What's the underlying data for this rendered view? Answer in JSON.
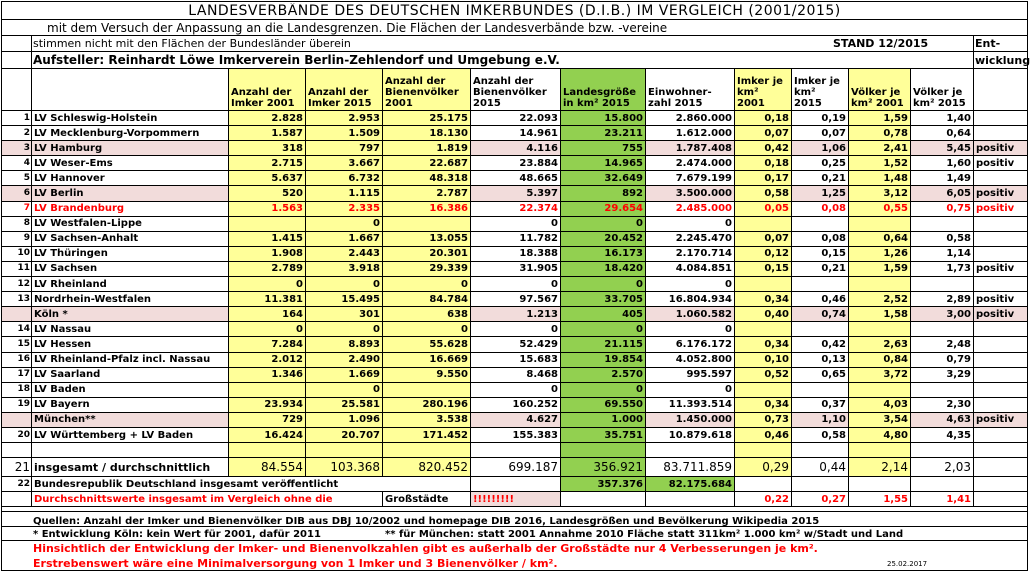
{
  "header": {
    "title": "LANDESVERBÄNDE DES DEUTSCHEN IMKERBUNDES (D.I.B.) IM VERGLEICH (2001/2015)",
    "subtitle": "mit dem Versuch der Anpassung an die Landesgrenzen. Die Flächen der Landesverbände bzw. -vereine",
    "subtitle2": "stimmen nicht mit den Flächen der Bundesländer überein",
    "stand": "STAND 12/2015",
    "ent": "Ent-",
    "author": "Aufsteller: Reinhardt Löwe Imkerverein Berlin-Zehlendorf und Umgebung e.V.",
    "wicklung": "wicklung"
  },
  "columns": [
    "Anzahl der Imker 2001",
    "Anzahl der Imker 2015",
    "Anzahl der Bienenvölker 2001",
    "Anzahl der Bienenvölker 2015",
    "Landesgröße in km² 2015",
    "Einwohner-zahl 2015",
    "Imker je km² 2001",
    "Imker je km² 2015",
    "Völker je km² 2001",
    "Völker je km² 2015"
  ],
  "rows": [
    {
      "nr": "1",
      "name": "LV Schleswig-Holstein",
      "v": [
        "2.828",
        "2.953",
        "25.175",
        "22.093",
        "15.800",
        "2.860.000",
        "0,18",
        "0,19",
        "1,59",
        "1,40"
      ],
      "ex": "",
      "style": ""
    },
    {
      "nr": "2",
      "name": "LV Mecklenburg-Vorpommern",
      "v": [
        "1.587",
        "1.509",
        "18.130",
        "14.961",
        "23.211",
        "1.612.000",
        "0,07",
        "0,07",
        "0,78",
        "0,64"
      ],
      "ex": "",
      "style": ""
    },
    {
      "nr": "3",
      "name": "LV Hamburg",
      "v": [
        "318",
        "797",
        "1.819",
        "4.116",
        "755",
        "1.787.408",
        "0,42",
        "1,06",
        "2,41",
        "5,45"
      ],
      "ex": "positiv",
      "style": "p"
    },
    {
      "nr": "4",
      "name": "LV Weser-Ems",
      "v": [
        "2.715",
        "3.667",
        "22.687",
        "23.884",
        "14.965",
        "2.474.000",
        "0,18",
        "0,25",
        "1,52",
        "1,60"
      ],
      "ex": "positiv",
      "style": ""
    },
    {
      "nr": "5",
      "name": "LV Hannover",
      "v": [
        "5.637",
        "6.732",
        "48.318",
        "48.665",
        "32.649",
        "7.679.199",
        "0,17",
        "0,21",
        "1,48",
        "1,49"
      ],
      "ex": "",
      "style": ""
    },
    {
      "nr": "6",
      "name": "LV Berlin",
      "v": [
        "520",
        "1.115",
        "2.787",
        "5.397",
        "892",
        "3.500.000",
        "0,58",
        "1,25",
        "3,12",
        "6,05"
      ],
      "ex": "positiv",
      "style": "p"
    },
    {
      "nr": "7",
      "name": "LV Brandenburg",
      "v": [
        "1.563",
        "2.335",
        "16.386",
        "22.374",
        "29.654",
        "2.485.000",
        "0,05",
        "0,08",
        "0,55",
        "0,75"
      ],
      "ex": "positiv",
      "style": "red"
    },
    {
      "nr": "8",
      "name": "LV Westfalen-Lippe",
      "v": [
        "",
        "0",
        "",
        "0",
        "0",
        "0",
        "",
        "",
        "",
        ""
      ],
      "ex": "",
      "style": ""
    },
    {
      "nr": "9",
      "name": "LV Sachsen-Anhalt",
      "v": [
        "1.415",
        "1.667",
        "13.055",
        "11.782",
        "20.452",
        "2.245.470",
        "0,07",
        "0,08",
        "0,64",
        "0,58"
      ],
      "ex": "",
      "style": ""
    },
    {
      "nr": "10",
      "name": "LV Thüringen",
      "v": [
        "1.908",
        "2.443",
        "20.301",
        "18.388",
        "16.173",
        "2.170.714",
        "0,12",
        "0,15",
        "1,26",
        "1,14"
      ],
      "ex": "",
      "style": ""
    },
    {
      "nr": "11",
      "name": "LV Sachsen",
      "v": [
        "2.789",
        "3.918",
        "29.339",
        "31.905",
        "18.420",
        "4.084.851",
        "0,15",
        "0,21",
        "1,59",
        "1,73"
      ],
      "ex": "positiv",
      "style": ""
    },
    {
      "nr": "12",
      "name": "LV Rheinland",
      "v": [
        "0",
        "0",
        "0",
        "0",
        "0",
        "0",
        "",
        "",
        "",
        ""
      ],
      "ex": "",
      "style": ""
    },
    {
      "nr": "13",
      "name": "Nordrhein-Westfalen",
      "v": [
        "11.381",
        "15.495",
        "84.784",
        "97.567",
        "33.705",
        "16.804.934",
        "0,34",
        "0,46",
        "2,52",
        "2,89"
      ],
      "ex": "positiv",
      "style": ""
    },
    {
      "nr": "",
      "name": "Köln *",
      "v": [
        "164",
        "301",
        "638",
        "1.213",
        "405",
        "1.060.582",
        "0,40",
        "0,74",
        "1,58",
        "3,00"
      ],
      "ex": "positiv",
      "style": "p"
    },
    {
      "nr": "14",
      "name": "LV Nassau",
      "v": [
        "0",
        "0",
        "0",
        "0",
        "0",
        "0",
        "",
        "",
        "",
        ""
      ],
      "ex": "",
      "style": ""
    },
    {
      "nr": "15",
      "name": "LV Hessen",
      "v": [
        "7.284",
        "8.893",
        "55.628",
        "52.429",
        "21.115",
        "6.176.172",
        "0,34",
        "0,42",
        "2,63",
        "2,48"
      ],
      "ex": "",
      "style": ""
    },
    {
      "nr": "16",
      "name": "LV Rheinland-Pfalz incl. Nassau",
      "v": [
        "2.012",
        "2.490",
        "16.669",
        "15.683",
        "19.854",
        "4.052.800",
        "0,10",
        "0,13",
        "0,84",
        "0,79"
      ],
      "ex": "",
      "style": ""
    },
    {
      "nr": "17",
      "name": "LV Saarland",
      "v": [
        "1.346",
        "1.669",
        "9.550",
        "8.468",
        "2.570",
        "995.597",
        "0,52",
        "0,65",
        "3,72",
        "3,29"
      ],
      "ex": "",
      "style": ""
    },
    {
      "nr": "18",
      "name": "LV Baden",
      "v": [
        "",
        "0",
        "",
        "0",
        "0",
        "0",
        "",
        "",
        "",
        ""
      ],
      "ex": "",
      "style": ""
    },
    {
      "nr": "19",
      "name": "LV Bayern",
      "v": [
        "23.934",
        "25.581",
        "280.196",
        "160.252",
        "69.550",
        "11.393.514",
        "0,34",
        "0,37",
        "4,03",
        "2,30"
      ],
      "ex": "",
      "style": ""
    },
    {
      "nr": "",
      "name": "München**",
      "v": [
        "729",
        "1.096",
        "3.538",
        "4.627",
        "1.000",
        "1.450.000",
        "0,73",
        "1,10",
        "3,54",
        "4,63"
      ],
      "ex": "positiv",
      "style": "p"
    },
    {
      "nr": "20",
      "name": "LV Württemberg + LV Baden",
      "v": [
        "16.424",
        "20.707",
        "171.452",
        "155.383",
        "35.751",
        "10.879.618",
        "0,46",
        "0,58",
        "4,80",
        "4,35"
      ],
      "ex": "",
      "style": ""
    }
  ],
  "sum": {
    "nr": "21",
    "name": "insgesamt / durchschnittlich",
    "v": [
      "84.554",
      "103.368",
      "820.452",
      "699.187",
      "356.921",
      "83.711.859",
      "0,29",
      "0,44",
      "2,14",
      "2,03"
    ]
  },
  "brd": {
    "nr": "22",
    "name": "Bundesrepublik Deutschland insgesamt veröffentlicht",
    "area": "357.376",
    "pop": "82.175.684"
  },
  "avg": {
    "name": "Durchschnittswerte insgesamt im Vergleich ohne die",
    "gross": "Großstädte",
    "mark": "!!!!!!!!!",
    "v": [
      "0,22",
      "0,27",
      "1,55",
      "1,41"
    ]
  },
  "footer": {
    "quellen": "Quellen: Anzahl der Imker und Bienenvölker DIB aus DBJ 10/2002 und homepage DIB 2016, Landesgrößen und Bevölkerung Wikipedia 2015",
    "koeln": "* Entwicklung Köln: kein Wert für 2001, dafür 2011",
    "muenchen": "** für München: statt 2001 Annahme 2010 Fläche statt 311km² 1.000 km² w/Stadt und Land",
    "hinweis": "Hinsichtlich der Entwicklung der Imker- und Bienenvolkzahlen gibt es außerhalb der Großstädte nur 4 Verbesserungen je km².",
    "ziel": "Erstrebenswert wäre eine Minimalversorgung von 1 Imker und 3 Bienenvölker /  km².",
    "datum": "25.02.2017"
  }
}
